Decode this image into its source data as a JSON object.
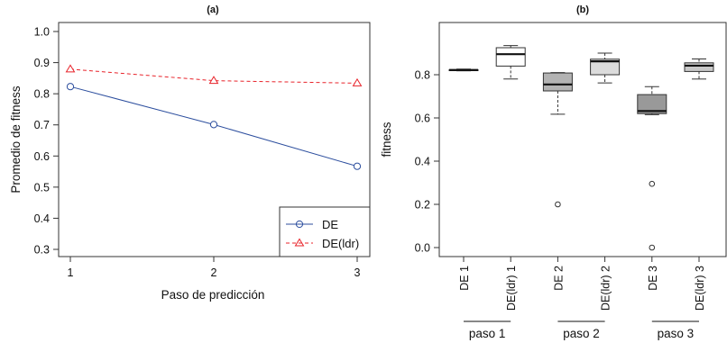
{
  "chart_data": [
    {
      "type": "line",
      "title": "(a)",
      "xlabel": "Paso de predicción",
      "ylabel": "Promedio de fitness",
      "x": [
        1,
        2,
        3
      ],
      "x_ticks": [
        "1",
        "2",
        "3"
      ],
      "ylim": [
        0.3,
        1.0
      ],
      "y_ticks": [
        "0.3",
        "0.4",
        "0.5",
        "0.6",
        "0.7",
        "0.8",
        "0.9",
        "1.0"
      ],
      "series": [
        {
          "name": "DE",
          "values": [
            0.823,
            0.701,
            0.567
          ],
          "color": "#2c4e9e",
          "marker": "circle",
          "linestyle": "solid"
        },
        {
          "name": "DE(ldr)",
          "values": [
            0.879,
            0.842,
            0.834
          ],
          "color": "#e8232a",
          "marker": "triangle",
          "linestyle": "dashed"
        }
      ],
      "legend": "bottom-right",
      "grid": false
    },
    {
      "type": "box",
      "title": "(b)",
      "ylabel": "fitness",
      "ylim": [
        0.0,
        1.0
      ],
      "y_ticks": [
        "0.0",
        "0.2",
        "0.4",
        "0.6",
        "0.8"
      ],
      "categories": [
        "DE 1",
        "DE(ldr) 1",
        "DE 2",
        "DE(ldr) 2",
        "DE 3",
        "DE(ldr) 3"
      ],
      "groups": [
        "paso 1",
        "paso 2",
        "paso 3"
      ],
      "boxes": [
        {
          "label": "DE 1",
          "min": 0.818,
          "q1": 0.821,
          "median": 0.822,
          "q3": 0.823,
          "max": 0.826,
          "outliers": [],
          "fill": "#8f8f8f"
        },
        {
          "label": "DE(ldr) 1",
          "min": 0.78,
          "q1": 0.84,
          "median": 0.895,
          "q3": 0.925,
          "max": 0.935,
          "outliers": [],
          "fill": "#ffffff"
        },
        {
          "label": "DE 2",
          "min": 0.617,
          "q1": 0.725,
          "median": 0.755,
          "q3": 0.808,
          "max": 0.81,
          "outliers": [
            0.2
          ],
          "fill": "#b3b3b3"
        },
        {
          "label": "DE(ldr) 2",
          "min": 0.762,
          "q1": 0.8,
          "median": 0.862,
          "q3": 0.872,
          "max": 0.9,
          "outliers": [],
          "fill": "#dcdcdc"
        },
        {
          "label": "DE 3",
          "min": 0.615,
          "q1": 0.62,
          "median": 0.632,
          "q3": 0.708,
          "max": 0.745,
          "outliers": [
            0.295,
            0.0
          ],
          "fill": "#999999"
        },
        {
          "label": "DE(ldr) 3",
          "min": 0.78,
          "q1": 0.815,
          "median": 0.842,
          "q3": 0.855,
          "max": 0.873,
          "outliers": [],
          "fill": "#c8c8c8"
        }
      ],
      "grid": false
    }
  ]
}
